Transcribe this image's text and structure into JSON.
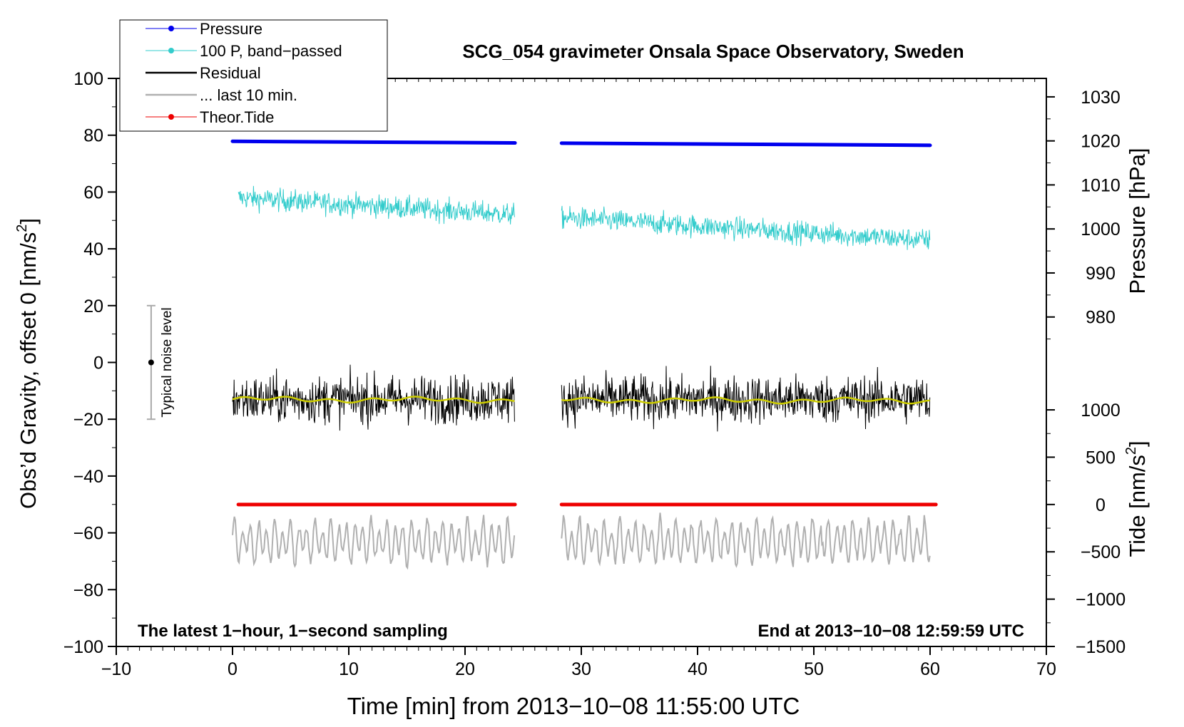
{
  "chart_data": {
    "type": "line",
    "title": "SCG_054 gravimeter Onsala Space Observatory, Sweden",
    "xlabel": "Time [min] from 2013−10−08 11:55:00 UTC",
    "ylabel_left": "Obs’d Gravity, offset 0 [nm/s",
    "ylabel_left_sup": "2",
    "ylabel_left_end": "]",
    "ylabel_right_pressure": "Pressure [hPa]",
    "ylabel_right_tide": "Tide [nm/s",
    "ylabel_right_tide_sup": "2",
    "ylabel_right_tide_end": "]",
    "xlim": [
      -10,
      70
    ],
    "ylim": [
      -100,
      100
    ],
    "x_ticks": [
      -10,
      0,
      10,
      20,
      30,
      40,
      50,
      60,
      70
    ],
    "x_tick_labels": [
      "−10",
      "0",
      "10",
      "20",
      "30",
      "40",
      "50",
      "60",
      "70"
    ],
    "y_ticks": [
      -100,
      -80,
      -60,
      -40,
      -20,
      0,
      20,
      40,
      60,
      80,
      100
    ],
    "y_tick_labels": [
      "−100",
      "−80",
      "−60",
      "−40",
      "−20",
      "0",
      "20",
      "40",
      "60",
      "80",
      "100"
    ],
    "pressure_axis": {
      "ticks": [
        980,
        990,
        1000,
        1010,
        1020,
        1030
      ],
      "tick_labels": [
        "980",
        "990",
        "1000",
        "1010",
        "1020",
        "1030"
      ],
      "map": {
        "value_a": 1020,
        "y_a": 78,
        "value_b": 980,
        "y_b": 16
      }
    },
    "tide_axis": {
      "ticks": [
        -1500,
        -1000,
        -500,
        0,
        500,
        1000
      ],
      "tick_labels": [
        "−1500",
        "−1000",
        "−500",
        "0",
        "500",
        "1000"
      ],
      "map": {
        "value_a": -1500,
        "y_a": -100,
        "value_b": 1000,
        "y_b": -16.7
      }
    },
    "gaps": [
      {
        "from": 24.3,
        "to": 28.3
      }
    ],
    "series": [
      {
        "name": "Pressure",
        "color": "#0000ee",
        "style": "thick",
        "start": 1019.9,
        "end": 1019.0,
        "x_start": 0,
        "x_end": 60
      },
      {
        "name": "100 P, band−passed",
        "color": "#33cccc",
        "style": "noisy",
        "start": 58.0,
        "end": 43.0,
        "amplitude": 3.5,
        "x_start": 0.5,
        "x_end": 60
      },
      {
        "name": "Residual",
        "color": "#000000",
        "style": "noisy",
        "start": -13.0,
        "end": -13.0,
        "amplitude": 6.0,
        "x_start": 0,
        "x_end": 60
      },
      {
        "name": "Residual smoothed",
        "color": "#cccc00",
        "style": "smooth",
        "start": -13.0,
        "end": -13.5,
        "x_start": 0,
        "x_end": 60
      },
      {
        "name": "... last 10 min.",
        "color": "#b0b0b0",
        "style": "wave",
        "start": -63,
        "end": -63,
        "amplitude": 6.0,
        "x_start": 0,
        "x_end": 60
      },
      {
        "name": "Theor.Tide",
        "color": "#ee0000",
        "style": "thick",
        "start": -16,
        "end": 0,
        "x_start": 0.5,
        "x_end": 60.5
      }
    ],
    "noise_indicator": {
      "label": "Typical noise level",
      "x": -7,
      "center": 0,
      "low": -20,
      "high": 20
    },
    "legend": {
      "placement": "top-left",
      "entries": [
        {
          "label": "Pressure",
          "color": "#0000ee",
          "marker": true
        },
        {
          "label": "100 P, band−passed",
          "color": "#33cccc",
          "marker": true
        },
        {
          "label": "Residual",
          "color": "#000000",
          "marker": false
        },
        {
          "label": "... last 10 min.",
          "color": "#b0b0b0",
          "marker": false
        },
        {
          "label": "Theor.Tide",
          "color": "#ee0000",
          "marker": true
        }
      ]
    },
    "annotations": {
      "bottom_left": "The latest 1−hour, 1−second sampling",
      "bottom_right": "End at 2013−10−08 12:59:59 UTC"
    }
  }
}
